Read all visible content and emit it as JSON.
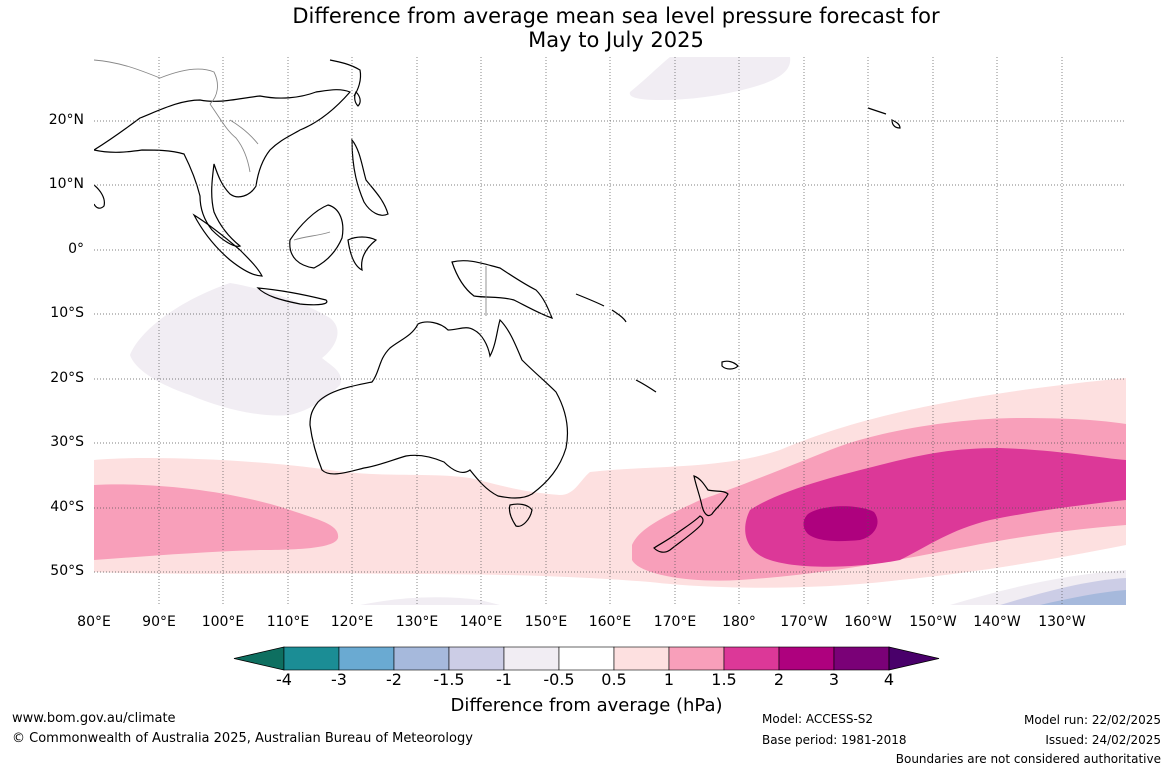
{
  "title": {
    "line1": "Difference from average mean sea level pressure forecast for",
    "line2": "May to July 2025"
  },
  "map": {
    "region": "Australia, Maritime Continent, Southwest Pacific",
    "lon_range": [
      "80°E",
      "130°W"
    ],
    "lat_range": [
      "55°S",
      "30°N"
    ],
    "gridlines": true,
    "lat_labels": [
      "20°N",
      "10°N",
      "0°",
      "10°S",
      "20°S",
      "30°S",
      "40°S",
      "50°S"
    ],
    "lon_labels": [
      "80°E",
      "90°E",
      "100°E",
      "110°E",
      "120°E",
      "130°E",
      "140°E",
      "150°E",
      "160°E",
      "170°E",
      "180°",
      "170°W",
      "160°W",
      "150°W",
      "140°W",
      "130°W"
    ],
    "anomaly_regions": [
      {
        "description": "large band south of Australia and across Tasman Sea to South Pacific",
        "category": "0.5 to 1"
      },
      {
        "description": "southern Indian Ocean near 80-105°E, 35-45°S",
        "category": "1 to 1.5"
      },
      {
        "description": "South Pacific east of New Zealand, 165°E-130°W, 30-50°S",
        "category": "1 to 1.5"
      },
      {
        "description": "South Pacific core, 175°E-130°W, 35-48°S",
        "category": "1.5 to 2"
      },
      {
        "description": "South Pacific maximum near 165°W, 42-45°S",
        "category": "2 to 3"
      },
      {
        "description": "eastern Indian Ocean west of Australia, 105-120°E, 5-25°S",
        "category": "-1 to -0.5"
      },
      {
        "description": "North Pacific near 155-175°E, 25-30°N",
        "category": "-1 to -0.5"
      },
      {
        "description": "far southeast Pacific near 140-130°W, 50-55°S",
        "category": "-1.5 to -1"
      }
    ]
  },
  "colorbar": {
    "label": "Difference from average (hPa)",
    "ticks": [
      "-4",
      "-3",
      "-2",
      "-1.5",
      "-1",
      "-0.5",
      "0.5",
      "1",
      "1.5",
      "2",
      "3",
      "4"
    ],
    "colors": [
      "#0e6f60",
      "#1b8d95",
      "#6aaad2",
      "#a6b9dc",
      "#cccde6",
      "#f1edf3",
      "#ffffff",
      "#fde0e0",
      "#f89fba",
      "#dc3898",
      "#ae017e",
      "#7a0177",
      "#49006a"
    ]
  },
  "footer": {
    "website": "www.bom.gov.au/climate",
    "copyright": "© Commonwealth of Australia 2025, Australian Bureau of Meteorology",
    "model": "Model: ACCESS-S2",
    "base_period": "Base period: 1981-2018",
    "model_run": "Model run: 22/02/2025",
    "issued": "Issued: 24/02/2025",
    "disclaimer": "Boundaries are not considered authoritative"
  }
}
